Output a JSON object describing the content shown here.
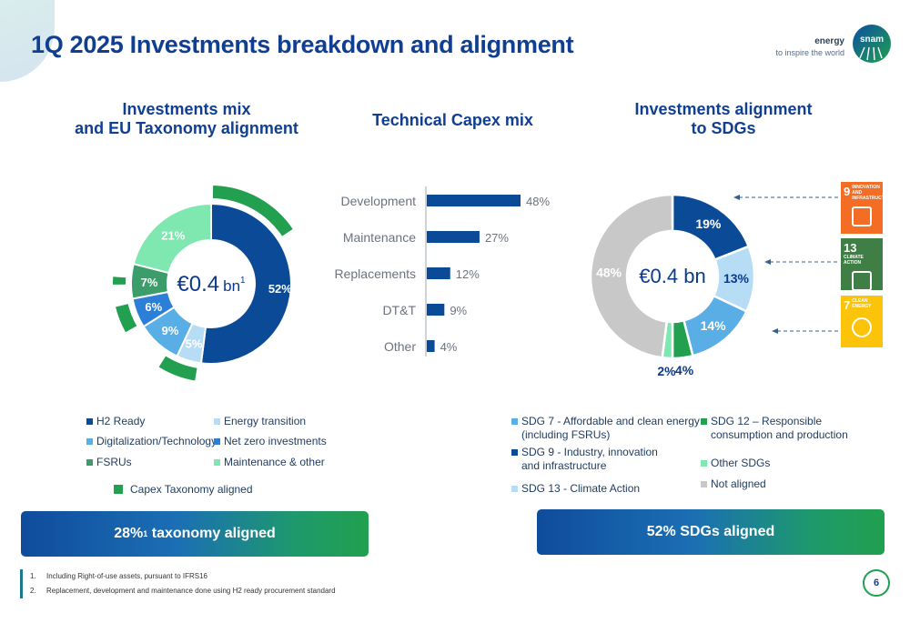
{
  "title": "1Q 2025 Investments breakdown and alignment",
  "brand": {
    "tagline_bold": "energy",
    "tagline": "to inspire the world",
    "logo_text": "snam"
  },
  "colors": {
    "dark_blue": "#0b4a96",
    "light_blue": "#5aaee6",
    "mid_blue": "#2c7fd6",
    "pale_blue": "#b7dcf5",
    "green": "#22a050",
    "mint": "#7ee8b0",
    "teal_green": "#3a9d6a",
    "grey": "#c8c8c8"
  },
  "panels": {
    "mix_title_l1": "Investments mix",
    "mix_title_l2": "and EU Taxonomy alignment",
    "capex_title": "Technical Capex mix",
    "sdg_title_l1": "Investments alignment",
    "sdg_title_l2": "to SDGs"
  },
  "mix_donut": {
    "center_value": "€0.4",
    "center_unit": "bn",
    "center_sup": "1",
    "slices": [
      {
        "name": "H2 Ready",
        "value": 52,
        "label": "52%",
        "color": "#0b4a96"
      },
      {
        "name": "Energy transition",
        "value": 5,
        "label": "5%",
        "color": "#b7dcf5"
      },
      {
        "name": "Digitalization/Technology",
        "value": 9,
        "label": "9%",
        "color": "#5aaee6"
      },
      {
        "name": "Net zero investments",
        "value": 6,
        "label": "6%",
        "color": "#2c7fd6"
      },
      {
        "name": "FSRUs",
        "value": 7,
        "label": "7%",
        "color": "#3a9d6a"
      },
      {
        "name": "Maintenance & other",
        "value": 21,
        "label": "21%",
        "color": "#7ee8b0"
      }
    ],
    "legend": {
      "h2": "H2 Ready",
      "energy": "Energy transition",
      "digital": "Digitalization/Technology",
      "netzero": "Net zero investments",
      "fsru": "FSRUs",
      "maint": "Maintenance & other",
      "taxonomy": "Capex Taxonomy aligned"
    }
  },
  "chart_data": [
    {
      "type": "pie",
      "categories": [
        "H2 Ready",
        "Energy transition",
        "Digitalization/Technology",
        "Net zero investments",
        "FSRUs",
        "Maintenance & other"
      ],
      "values": [
        52,
        5,
        9,
        6,
        7,
        21
      ]
    },
    {
      "type": "bar",
      "categories": [
        "Development",
        "Maintenance",
        "Replacements",
        "DT&T",
        "Other"
      ],
      "values": [
        48,
        27,
        12,
        9,
        4
      ],
      "value_labels": [
        "48%",
        "27%",
        "12%",
        "9%",
        "4%"
      ]
    },
    {
      "type": "pie",
      "categories": [
        "SDG 9",
        "SDG 13",
        "SDG 7",
        "SDG 12",
        "Other SDGs",
        "Not aligned"
      ],
      "values": [
        19,
        13,
        14,
        4,
        2,
        48
      ],
      "value_labels": [
        "19%",
        "13%",
        "14%",
        "4%",
        "2%",
        "48%"
      ]
    }
  ],
  "capex": {
    "bars": [
      {
        "label": "Development",
        "value": 48,
        "text": "48%"
      },
      {
        "label": "Maintenance",
        "value": 27,
        "text": "27%"
      },
      {
        "label": "Replacements",
        "value": 12,
        "text": "12%"
      },
      {
        "label": "DT&T",
        "value": 9,
        "text": "9%"
      },
      {
        "label": "Other",
        "value": 4,
        "text": "4%"
      }
    ]
  },
  "sdg_donut": {
    "center_value": "€0.4 bn",
    "slices": [
      {
        "name": "SDG 9",
        "value": 19,
        "label": "19%",
        "color": "#0b4a96"
      },
      {
        "name": "SDG 13",
        "value": 13,
        "label": "13%",
        "color": "#b7dcf5"
      },
      {
        "name": "SDG 7",
        "value": 14,
        "label": "14%",
        "color": "#5aaee6"
      },
      {
        "name": "SDG 12",
        "value": 4,
        "label": "4%",
        "color": "#22a050"
      },
      {
        "name": "Other SDGs",
        "value": 2,
        "label": "2%",
        "color": "#7ee8b0"
      },
      {
        "name": "Not aligned",
        "value": 48,
        "label": "48%",
        "color": "#c8c8c8"
      }
    ],
    "legend": {
      "sdg7_l1": "SDG 7 - Affordable and clean energy",
      "sdg7_l2": "(including FSRUs)",
      "sdg9_l1": "SDG 9 - Industry, innovation",
      "sdg9_l2": "and infrastructure",
      "sdg13": "SDG 13 - Climate Action",
      "sdg12_l1": "SDG 12 – Responsible",
      "sdg12_l2": "consumption and production",
      "other": "Other SDGs",
      "notaligned": "Not aligned"
    },
    "tiles": [
      {
        "num": "9",
        "text": "INNOVATION AND INFRASTRUCTURE",
        "color": "#f36d25"
      },
      {
        "num": "13",
        "text": "CLIMATE ACTION",
        "color": "#3f7e44"
      },
      {
        "num": "7",
        "text": "CLEAN ENERGY",
        "color": "#fcc30b"
      }
    ]
  },
  "banners": {
    "left_value": "28%",
    "left_sup": "1",
    "left_text": "taxonomy aligned",
    "right": "52% SDGs aligned"
  },
  "footnotes": [
    {
      "n": "1.",
      "text": "Including Right-of-use assets, pursuant to IFRS16"
    },
    {
      "n": "2.",
      "text": "Replacement, development and maintenance done using H2 ready procurement standard"
    }
  ],
  "page_number": "6"
}
